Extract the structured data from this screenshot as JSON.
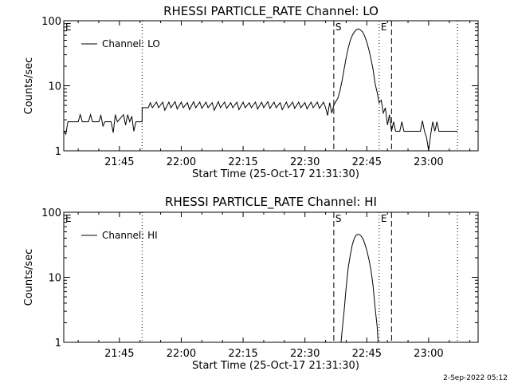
{
  "footer": {
    "timestamp": "2-Sep-2022 05:12"
  },
  "colors": {
    "line": "#000000",
    "background": "#ffffff"
  },
  "chart_data": [
    {
      "type": "line",
      "title": "RHESSI PARTICLE_RATE Channel: LO",
      "xlabel": "Start Time (25-Oct-17 21:31:30)",
      "ylabel": "Counts/sec",
      "yscale": "log",
      "ylim": [
        1,
        100
      ],
      "xlim": [
        "21:31:30",
        "23:12:00"
      ],
      "x_tick_labels": [
        "21:45",
        "22:00",
        "22:15",
        "22:30",
        "22:45",
        "23:00"
      ],
      "y_tick_labels": [
        "1",
        "10",
        "100"
      ],
      "legend": {
        "position": "top-left",
        "entries": [
          "Channel: LO"
        ]
      },
      "markers": [
        {
          "label": "E",
          "time": "21:31:30",
          "style": "none"
        },
        {
          "label": "",
          "time": "21:50:30",
          "style": "dotted"
        },
        {
          "label": "S",
          "time": "22:37:00",
          "style": "dashed"
        },
        {
          "label": "E",
          "time": "22:48:00",
          "style": "dotted"
        },
        {
          "label": "",
          "time": "22:51:00",
          "style": "dashed"
        },
        {
          "label": "",
          "time": "23:07:00",
          "style": "dotted"
        }
      ],
      "series": [
        {
          "points": [
            [
              "21:31:30",
              2.0
            ],
            [
              "21:32:00",
              1.8
            ],
            [
              "21:32:30",
              2.8
            ],
            [
              "21:35:00",
              2.8
            ],
            [
              "21:35:30",
              3.6
            ],
            [
              "21:36:00",
              2.8
            ],
            [
              "21:37:30",
              2.8
            ],
            [
              "21:38:00",
              3.6
            ],
            [
              "21:38:30",
              2.8
            ],
            [
              "21:40:00",
              2.8
            ],
            [
              "21:40:30",
              3.5
            ],
            [
              "21:41:00",
              2.4
            ],
            [
              "21:41:30",
              2.8
            ],
            [
              "21:43:00",
              2.8
            ],
            [
              "21:43:30",
              1.9
            ],
            [
              "21:44:00",
              3.6
            ],
            [
              "21:44:30",
              2.8
            ],
            [
              "21:46:00",
              3.6
            ],
            [
              "21:46:30",
              2.5
            ],
            [
              "21:47:00",
              3.6
            ],
            [
              "21:47:30",
              2.8
            ],
            [
              "21:48:00",
              3.4
            ],
            [
              "21:48:30",
              2.0
            ],
            [
              "21:49:00",
              2.8
            ],
            [
              "21:50:30",
              2.8
            ],
            [
              "21:50:31",
              4.6
            ],
            [
              "21:52:00",
              4.6
            ],
            [
              "21:52:30",
              5.5
            ],
            [
              "21:53:00",
              4.6
            ],
            [
              "21:54:00",
              5.6
            ],
            [
              "21:54:30",
              4.6
            ],
            [
              "21:55:30",
              5.6
            ],
            [
              "21:56:00",
              4.2
            ],
            [
              "21:57:00",
              5.6
            ],
            [
              "21:57:30",
              4.6
            ],
            [
              "21:58:30",
              5.7
            ],
            [
              "21:59:00",
              4.4
            ],
            [
              "22:00:00",
              5.6
            ],
            [
              "22:00:30",
              4.6
            ],
            [
              "22:01:30",
              5.5
            ],
            [
              "22:02:00",
              4.3
            ],
            [
              "22:03:00",
              5.7
            ],
            [
              "22:03:30",
              4.6
            ],
            [
              "22:04:30",
              5.6
            ],
            [
              "22:05:00",
              4.5
            ],
            [
              "22:06:00",
              5.6
            ],
            [
              "22:06:30",
              4.6
            ],
            [
              "22:07:30",
              5.5
            ],
            [
              "22:08:00",
              4.2
            ],
            [
              "22:09:00",
              5.7
            ],
            [
              "22:09:30",
              4.6
            ],
            [
              "22:10:30",
              5.6
            ],
            [
              "22:11:00",
              4.5
            ],
            [
              "22:12:00",
              5.5
            ],
            [
              "22:12:30",
              4.6
            ],
            [
              "22:13:30",
              5.6
            ],
            [
              "22:14:00",
              4.3
            ],
            [
              "22:15:00",
              5.6
            ],
            [
              "22:15:30",
              4.6
            ],
            [
              "22:16:30",
              5.5
            ],
            [
              "22:17:00",
              4.6
            ],
            [
              "22:18:00",
              5.6
            ],
            [
              "22:18:30",
              4.4
            ],
            [
              "22:19:30",
              5.6
            ],
            [
              "22:20:00",
              4.6
            ],
            [
              "22:21:00",
              5.7
            ],
            [
              "22:21:30",
              4.5
            ],
            [
              "22:22:30",
              5.6
            ],
            [
              "22:23:00",
              4.6
            ],
            [
              "22:24:00",
              5.5
            ],
            [
              "22:24:30",
              4.3
            ],
            [
              "22:25:30",
              5.6
            ],
            [
              "22:26:00",
              4.6
            ],
            [
              "22:27:00",
              5.6
            ],
            [
              "22:27:30",
              4.5
            ],
            [
              "22:28:30",
              5.6
            ],
            [
              "22:29:00",
              4.6
            ],
            [
              "22:30:00",
              5.5
            ],
            [
              "22:30:30",
              4.4
            ],
            [
              "22:31:30",
              5.6
            ],
            [
              "22:32:00",
              4.6
            ],
            [
              "22:33:00",
              5.6
            ],
            [
              "22:33:30",
              4.5
            ],
            [
              "22:34:30",
              5.6
            ],
            [
              "22:35:00",
              4.6
            ],
            [
              "22:35:30",
              3.5
            ],
            [
              "22:36:00",
              5.5
            ],
            [
              "22:36:30",
              3.8
            ],
            [
              "22:37:00",
              5.0
            ],
            [
              "22:38:00",
              6.5
            ],
            [
              "22:38:30",
              8.5
            ],
            [
              "22:39:00",
              12
            ],
            [
              "22:39:30",
              18
            ],
            [
              "22:40:00",
              27
            ],
            [
              "22:40:30",
              38
            ],
            [
              "22:41:00",
              50
            ],
            [
              "22:41:30",
              60
            ],
            [
              "22:42:00",
              68
            ],
            [
              "22:42:30",
              73
            ],
            [
              "22:43:00",
              75
            ],
            [
              "22:43:30",
              72
            ],
            [
              "22:44:00",
              67
            ],
            [
              "22:44:30",
              58
            ],
            [
              "22:45:00",
              47
            ],
            [
              "22:45:30",
              36
            ],
            [
              "22:46:00",
              26
            ],
            [
              "22:46:30",
              18
            ],
            [
              "22:47:00",
              11
            ],
            [
              "22:47:30",
              8.0
            ],
            [
              "22:48:00",
              5.5
            ],
            [
              "22:48:30",
              6.0
            ],
            [
              "22:49:00",
              3.8
            ],
            [
              "22:49:30",
              4.6
            ],
            [
              "22:50:00",
              2.5
            ],
            [
              "22:50:30",
              3.6
            ],
            [
              "22:51:00",
              2.0
            ],
            [
              "22:51:30",
              2.8
            ],
            [
              "22:52:00",
              2.0
            ],
            [
              "22:53:00",
              2.0
            ],
            [
              "22:53:30",
              2.8
            ],
            [
              "22:54:00",
              2.0
            ],
            [
              "22:58:00",
              2.0
            ],
            [
              "22:58:30",
              2.9
            ],
            [
              "22:59:00",
              2.0
            ],
            [
              "22:59:30",
              1.6
            ],
            [
              "23:00:00",
              1.0
            ],
            [
              "23:00:30",
              1.8
            ],
            [
              "23:01:00",
              2.8
            ],
            [
              "23:01:30",
              2.0
            ],
            [
              "23:02:00",
              2.8
            ],
            [
              "23:02:30",
              2.0
            ],
            [
              "23:07:00",
              2.0
            ]
          ]
        }
      ]
    },
    {
      "type": "line",
      "title": "RHESSI PARTICLE_RATE Channel: HI",
      "xlabel": "Start Time (25-Oct-17 21:31:30)",
      "ylabel": "Counts/sec",
      "yscale": "log",
      "ylim": [
        1,
        100
      ],
      "xlim": [
        "21:31:30",
        "23:12:00"
      ],
      "x_tick_labels": [
        "21:45",
        "22:00",
        "22:15",
        "22:30",
        "22:45",
        "23:00"
      ],
      "y_tick_labels": [
        "1",
        "10",
        "100"
      ],
      "legend": {
        "position": "top-left",
        "entries": [
          "Channel: HI"
        ]
      },
      "markers": [
        {
          "label": "E",
          "time": "21:31:30",
          "style": "none"
        },
        {
          "label": "",
          "time": "21:50:30",
          "style": "dotted"
        },
        {
          "label": "S",
          "time": "22:37:00",
          "style": "dashed"
        },
        {
          "label": "E",
          "time": "22:48:00",
          "style": "dotted"
        },
        {
          "label": "",
          "time": "22:51:00",
          "style": "dashed"
        },
        {
          "label": "",
          "time": "23:07:00",
          "style": "dotted"
        }
      ],
      "series": [
        {
          "points": [
            [
              "22:38:45",
              1.0
            ],
            [
              "22:39:00",
              1.5
            ],
            [
              "22:39:30",
              3.0
            ],
            [
              "22:40:00",
              7.0
            ],
            [
              "22:40:30",
              14
            ],
            [
              "22:41:00",
              22
            ],
            [
              "22:41:30",
              32
            ],
            [
              "22:42:00",
              40
            ],
            [
              "22:42:30",
              45
            ],
            [
              "22:43:00",
              46
            ],
            [
              "22:43:30",
              44
            ],
            [
              "22:44:00",
              40
            ],
            [
              "22:44:30",
              33
            ],
            [
              "22:45:00",
              26
            ],
            [
              "22:45:30",
              19
            ],
            [
              "22:46:00",
              13
            ],
            [
              "22:46:30",
              7.5
            ],
            [
              "22:47:00",
              3.5
            ],
            [
              "22:47:30",
              1.8
            ],
            [
              "22:47:45",
              1.0
            ]
          ]
        }
      ]
    }
  ]
}
